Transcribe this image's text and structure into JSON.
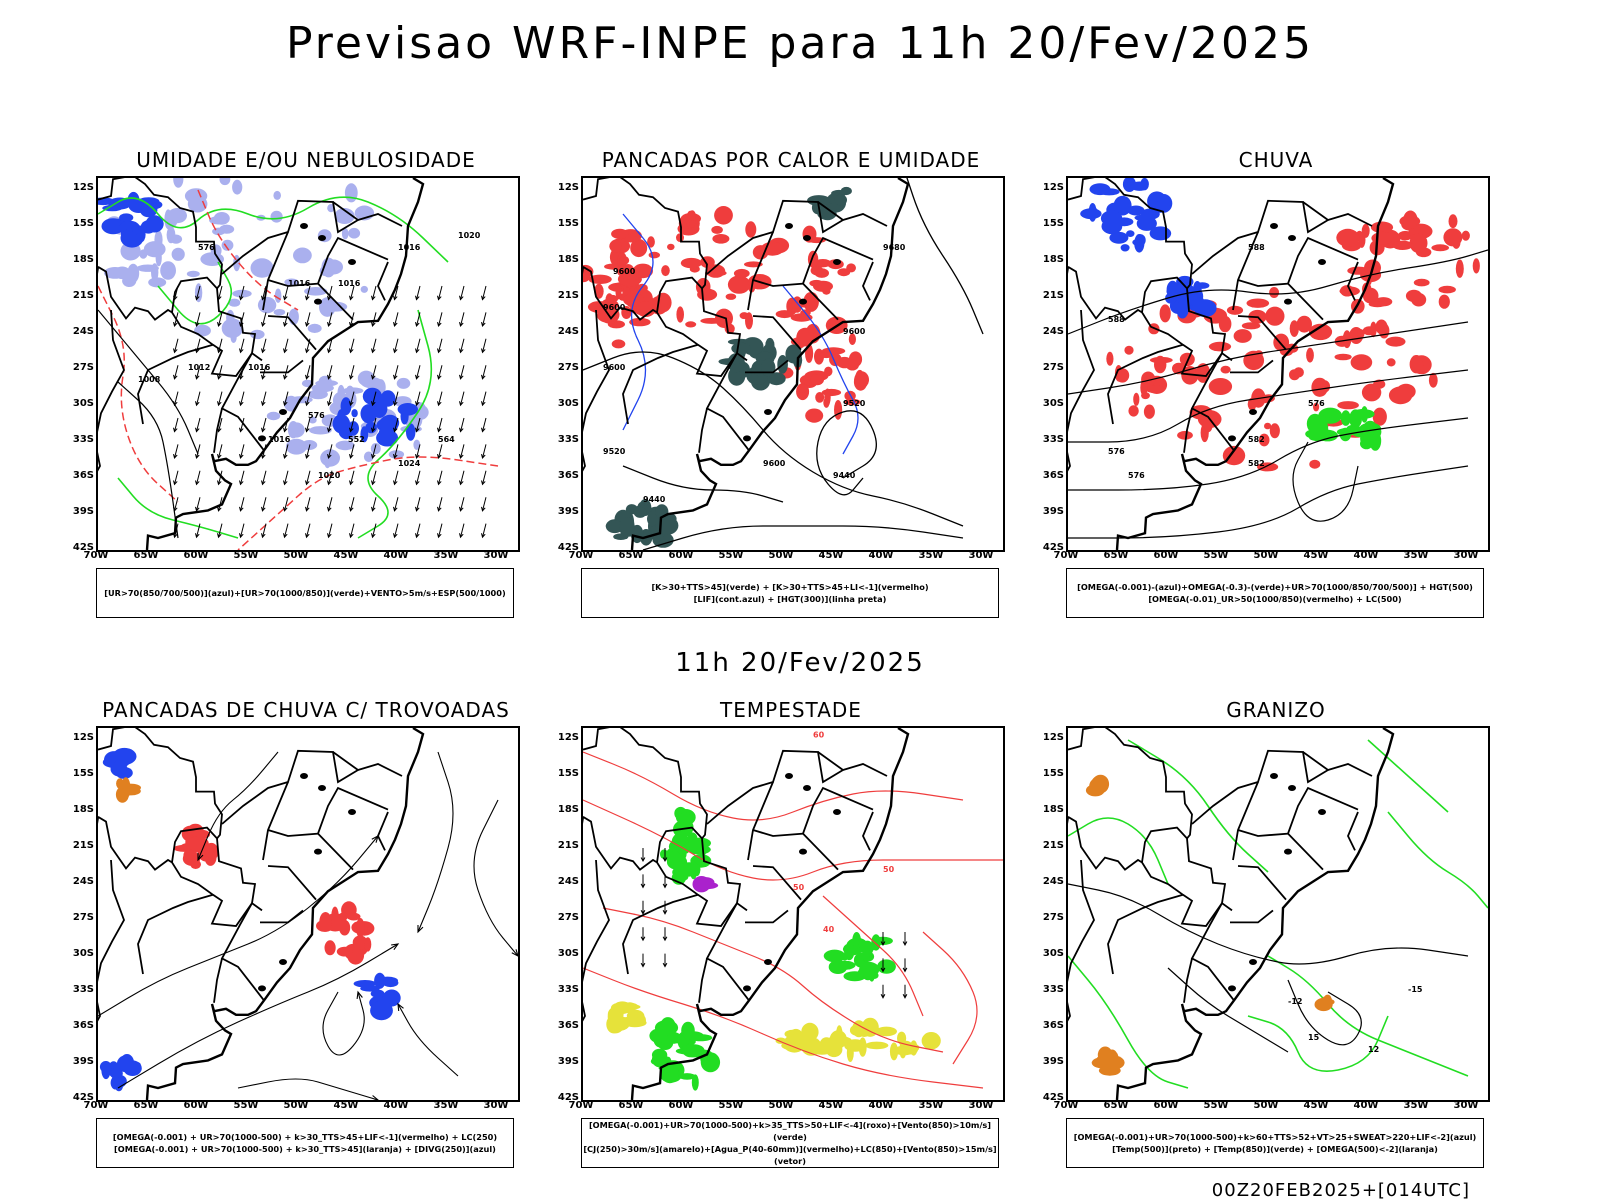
{
  "title": "Previsao WRF-INPE  para 11h 20/Fev/2025",
  "mid_date": "11h 20/Fev/2025",
  "footer": "00Z20FEB2025+[014UTC]",
  "lat_labels": [
    "12S",
    "15S",
    "18S",
    "21S",
    "24S",
    "27S",
    "30S",
    "33S",
    "36S",
    "39S",
    "42S"
  ],
  "lon_labels": [
    "70W",
    "65W",
    "60W",
    "55W",
    "50W",
    "45W",
    "40W",
    "35W",
    "30W"
  ],
  "colors": {
    "red": "#ef3d3d",
    "green": "#22dd22",
    "blue": "#2244ee",
    "lightblue": "#aab0ee",
    "teal": "#335555",
    "yellow": "#e6e23a",
    "orange": "#e08020",
    "purple": "#aa22cc"
  },
  "panels": [
    {
      "title": "UMIDADE E/OU NEBULOSIDADE",
      "legend": [
        "[UR>70(850/700/500)](azul)+[UR>70(1000/850)](verde)+VENTO>5m/s+ESP(500/1000)"
      ],
      "contour_labels": [
        "1016",
        "1016",
        "1016",
        "1020",
        "1008",
        "1012",
        "1016",
        "1016",
        "1020",
        "1024",
        "576",
        "576",
        "564",
        "552"
      ]
    },
    {
      "title": "PANCADAS POR CALOR E UMIDADE",
      "legend": [
        "[K>30+TTS>45](verde) + [K>30+TTS>45+LI<-1](vermelho)",
        "[LIF](cont.azul) + [HGT(300)](linha preta)"
      ],
      "contour_labels": [
        "9680",
        "9600",
        "9600",
        "9600",
        "9600",
        "9520",
        "9520",
        "9440",
        "9600",
        "9440"
      ]
    },
    {
      "title": "CHUVA",
      "legend": [
        "[OMEGA(-0.001)-(azul)+OMEGA(-0.3)-(verde)+UR>70(1000/850/700/500)] + HGT(500)",
        "[OMEGA(-0.01)_UR>50(1000/850)(vermelho) + LC(500)"
      ],
      "contour_labels": [
        "588",
        "588",
        "582",
        "576",
        "576",
        "576",
        "582"
      ]
    },
    {
      "title": "PANCADAS DE CHUVA C/ TROVOADAS",
      "legend": [
        "[OMEGA(-0.001) + UR>70(1000-500) + k>30_TTS>45+LIF<-1](vermelho) + LC(250)",
        "[OMEGA(-0.001) + UR>70(1000-500) + k>30_TTS>45](laranja) + [DIVG(250)](azul)"
      ],
      "contour_labels": []
    },
    {
      "title": "TEMPESTADE",
      "legend": [
        "[OMEGA(-0.001)+UR>70(1000-500)+k>35_TTS>50+LIF<-4](roxo)+[Vento(850)>10m/s](verde)",
        "[CJ(250)>30m/s](amarelo)+[Agua_P(40-60mm)](vermelho)+LC(850)+[Vento(850)>15m/s](vetor)"
      ],
      "contour_labels": [
        "60",
        "50",
        "50",
        "40"
      ]
    },
    {
      "title": "GRANIZO",
      "legend": [
        "[OMEGA(-0.001)+UR>70(1000-500)+k>60+TTS>52+VT>25+SWEAT>220+LIF<-2](azul)",
        "[Temp(500)](preto) + [Temp(850)](verde) + [OMEGA(500)<-2](laranja)"
      ],
      "contour_labels": [
        "-12",
        "-15",
        "12",
        "15"
      ]
    }
  ]
}
